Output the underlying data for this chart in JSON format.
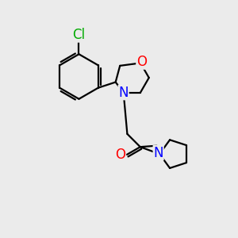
{
  "background_color": "#ebebeb",
  "bond_color": "#000000",
  "bond_width": 1.6,
  "atom_colors": {
    "Cl": "#00aa00",
    "O": "#ff0000",
    "N": "#0000ff",
    "C": "#000000"
  },
  "font_size": 11.5
}
